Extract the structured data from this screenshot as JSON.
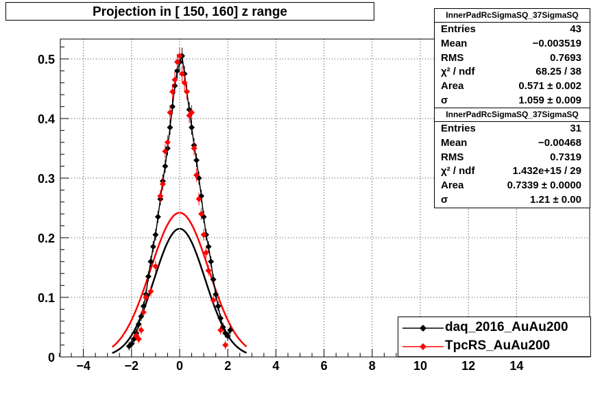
{
  "title": "Projection in [ 150, 160] z range",
  "stats": [
    {
      "name": "InnerPadRcSigmaSQ_37SigmaSQ",
      "rows": [
        {
          "key": "Entries",
          "value": "43"
        },
        {
          "key": "Mean",
          "value": "−0.003519"
        },
        {
          "key": "RMS",
          "value": "0.7693"
        },
        {
          "key": "χ² / ndf",
          "value": "68.25 / 38"
        },
        {
          "key": "Area",
          "value": "0.571 ± 0.002"
        },
        {
          "key": "σ",
          "value": "1.059 ± 0.009"
        }
      ]
    },
    {
      "name": "InnerPadRcSigmaSQ_37SigmaSQ",
      "rows": [
        {
          "key": "Entries",
          "value": "31"
        },
        {
          "key": "Mean",
          "value": "−0.00468"
        },
        {
          "key": "RMS",
          "value": "0.7319"
        },
        {
          "key": "χ² / ndf",
          "value": "1.432e+15 / 29"
        },
        {
          "key": "Area",
          "value": "0.7339 ± 0.0000"
        },
        {
          "key": "σ",
          "value": "1.21 ± 0.00"
        }
      ]
    }
  ],
  "legend": [
    {
      "label": "daq_2016_AuAu200",
      "color": "#000000"
    },
    {
      "label": "TpcRS_AuAu200",
      "color": "#ff0000"
    }
  ],
  "chart_data": {
    "type": "scatter",
    "title": "Projection in [ 150, 160] z range",
    "xlabel": "",
    "ylabel": "",
    "xlim": [
      -5,
      17
    ],
    "ylim": [
      0,
      0.53
    ],
    "xticks": [
      -4,
      -2,
      0,
      2,
      4,
      6,
      8,
      10,
      12,
      14
    ],
    "xtick_labels": [
      "−4",
      "−2",
      "0",
      "2",
      "4",
      "6",
      "8",
      "10",
      "12",
      "14"
    ],
    "yticks": [
      0,
      0.1,
      0.2,
      0.3,
      0.4,
      0.5
    ],
    "ytick_labels": [
      "0",
      "0.1",
      "0.2",
      "0.3",
      "0.4",
      "0.5"
    ],
    "grid": true,
    "series": [
      {
        "name": "daq_2016_AuAu200",
        "color": "#000000",
        "points": [
          [
            -2.1,
            0.018
          ],
          [
            -2.0,
            0.022
          ],
          [
            -1.9,
            0.03
          ],
          [
            -1.8,
            0.04
          ],
          [
            -1.7,
            0.055
          ],
          [
            -1.6,
            0.068
          ],
          [
            -1.5,
            0.085
          ],
          [
            -1.4,
            0.105
          ],
          [
            -1.3,
            0.135
          ],
          [
            -1.2,
            0.16
          ],
          [
            -1.1,
            0.185
          ],
          [
            -1.0,
            0.205
          ],
          [
            -0.9,
            0.235
          ],
          [
            -0.8,
            0.265
          ],
          [
            -0.7,
            0.295
          ],
          [
            -0.6,
            0.32
          ],
          [
            -0.5,
            0.35
          ],
          [
            -0.4,
            0.385
          ],
          [
            -0.3,
            0.42
          ],
          [
            -0.2,
            0.455
          ],
          [
            -0.1,
            0.48
          ],
          [
            0.0,
            0.495
          ],
          [
            0.1,
            0.505
          ],
          [
            0.2,
            0.475
          ],
          [
            0.3,
            0.445
          ],
          [
            0.4,
            0.415
          ],
          [
            0.5,
            0.385
          ],
          [
            0.6,
            0.355
          ],
          [
            0.7,
            0.33
          ],
          [
            0.8,
            0.3
          ],
          [
            0.9,
            0.27
          ],
          [
            1.0,
            0.235
          ],
          [
            1.1,
            0.205
          ],
          [
            1.2,
            0.185
          ],
          [
            1.3,
            0.16
          ],
          [
            1.4,
            0.13
          ],
          [
            1.5,
            0.105
          ],
          [
            1.6,
            0.085
          ],
          [
            1.7,
            0.065
          ],
          [
            1.8,
            0.05
          ],
          [
            1.9,
            0.04
          ],
          [
            2.0,
            0.035
          ],
          [
            2.1,
            0.045
          ]
        ],
        "fit": {
          "sigma": 1.059,
          "area": 0.571
        }
      },
      {
        "name": "TpcRS_AuAu200",
        "color": "#ff0000",
        "points": [
          [
            -1.8,
            0.035
          ],
          [
            -1.7,
            0.03
          ],
          [
            -1.6,
            0.045
          ],
          [
            -1.5,
            0.075
          ],
          [
            -1.4,
            0.1
          ],
          [
            -1.2,
            0.11
          ],
          [
            -1.0,
            0.152
          ],
          [
            -0.8,
            0.27
          ],
          [
            -0.7,
            0.29
          ],
          [
            -0.6,
            0.345
          ],
          [
            -0.5,
            0.36
          ],
          [
            -0.4,
            0.41
          ],
          [
            -0.3,
            0.445
          ],
          [
            -0.2,
            0.465
          ],
          [
            -0.1,
            0.495
          ],
          [
            0.0,
            0.505
          ],
          [
            0.1,
            0.475
          ],
          [
            0.2,
            0.46
          ],
          [
            0.3,
            0.445
          ],
          [
            0.4,
            0.405
          ],
          [
            0.5,
            0.41
          ],
          [
            0.6,
            0.35
          ],
          [
            0.7,
            0.305
          ],
          [
            0.8,
            0.265
          ],
          [
            0.9,
            0.24
          ],
          [
            1.0,
            0.205
          ],
          [
            1.1,
            0.175
          ],
          [
            1.2,
            0.145
          ],
          [
            1.4,
            0.095
          ],
          [
            1.7,
            0.045
          ],
          [
            1.9,
            0.02
          ]
        ],
        "fit": {
          "sigma": 1.21,
          "area": 0.7339
        }
      }
    ]
  }
}
